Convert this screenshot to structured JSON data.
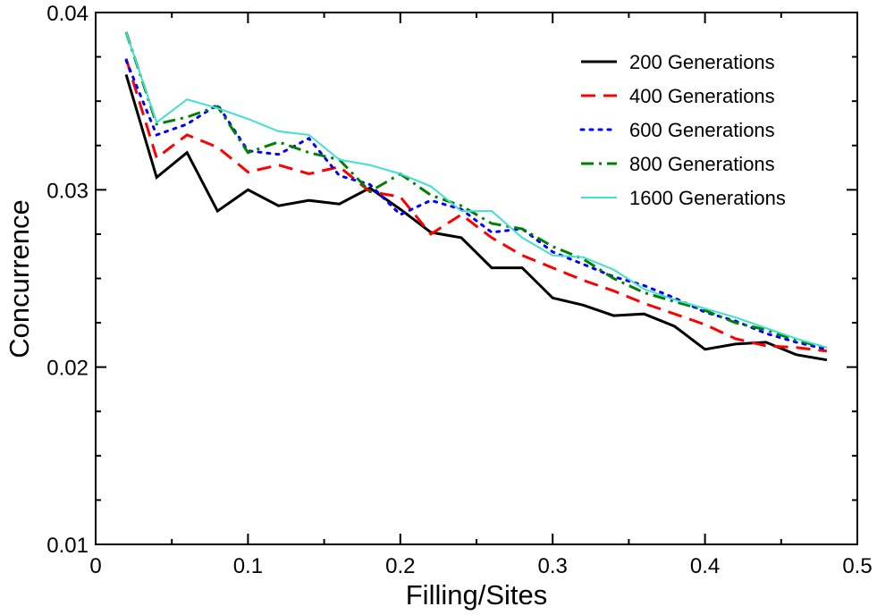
{
  "chart_data": {
    "type": "line",
    "title": "",
    "xlabel": "Filling/Sites",
    "ylabel": "Concurrence",
    "xlim": [
      0,
      0.5
    ],
    "ylim": [
      0.01,
      0.04
    ],
    "xticks": [
      0,
      0.1,
      0.2,
      0.3,
      0.4,
      0.5
    ],
    "xtick_labels": [
      "0",
      "0.1",
      "0.2",
      "0.3",
      "0.4",
      "0.5"
    ],
    "yticks": [
      0.01,
      0.02,
      0.03,
      0.04
    ],
    "ytick_labels": [
      "0.01",
      "0.02",
      "0.03",
      "0.04"
    ],
    "legend_position": "top-right",
    "x": [
      0.02,
      0.04,
      0.06,
      0.08,
      0.1,
      0.12,
      0.14,
      0.16,
      0.18,
      0.2,
      0.22,
      0.24,
      0.26,
      0.28,
      0.3,
      0.32,
      0.34,
      0.36,
      0.38,
      0.4,
      0.42,
      0.44,
      0.46,
      0.48
    ],
    "series": [
      {
        "name": "200 Generations",
        "color": "#000000",
        "dash": "solid",
        "values": [
          0.0365,
          0.0307,
          0.0321,
          0.0288,
          0.03,
          0.0291,
          0.0294,
          0.0292,
          0.0301,
          0.0289,
          0.0276,
          0.0273,
          0.0256,
          0.0256,
          0.0239,
          0.0235,
          0.0229,
          0.023,
          0.0223,
          0.021,
          0.0213,
          0.0214,
          0.0207,
          0.0204
        ]
      },
      {
        "name": "400 Generations",
        "color": "#ff0000",
        "dash": "dashed",
        "values": [
          0.0374,
          0.0318,
          0.0331,
          0.0324,
          0.031,
          0.0314,
          0.0309,
          0.0313,
          0.0299,
          0.0296,
          0.0275,
          0.0286,
          0.0273,
          0.0263,
          0.0256,
          0.0249,
          0.0243,
          0.0236,
          0.023,
          0.0224,
          0.0216,
          0.0212,
          0.0211,
          0.0209
        ]
      },
      {
        "name": "600 Generations",
        "color": "#0000ff",
        "dash": "dotted",
        "values": [
          0.0373,
          0.0331,
          0.0337,
          0.0348,
          0.0322,
          0.032,
          0.0329,
          0.0308,
          0.0303,
          0.0286,
          0.0294,
          0.0289,
          0.0276,
          0.0278,
          0.0265,
          0.0258,
          0.0251,
          0.0246,
          0.0239,
          0.0231,
          0.0226,
          0.0219,
          0.0214,
          0.021
        ]
      },
      {
        "name": "800 Generations",
        "color": "#008000",
        "dash": "dashdot",
        "values": [
          0.0389,
          0.0337,
          0.0341,
          0.0347,
          0.0321,
          0.0327,
          0.0321,
          0.0317,
          0.0299,
          0.0309,
          0.0297,
          0.0291,
          0.0281,
          0.0278,
          0.0268,
          0.0261,
          0.025,
          0.0242,
          0.0237,
          0.0232,
          0.0225,
          0.0221,
          0.0215,
          0.0211
        ]
      },
      {
        "name": "1600 Generations",
        "color": "#40e0d0",
        "dash": "solid",
        "values": [
          0.0389,
          0.0338,
          0.0351,
          0.0346,
          0.034,
          0.0333,
          0.0331,
          0.0317,
          0.0314,
          0.0309,
          0.0302,
          0.0288,
          0.0288,
          0.0273,
          0.0263,
          0.0262,
          0.0255,
          0.0244,
          0.0238,
          0.0233,
          0.0228,
          0.0222,
          0.0216,
          0.0211
        ]
      }
    ]
  }
}
